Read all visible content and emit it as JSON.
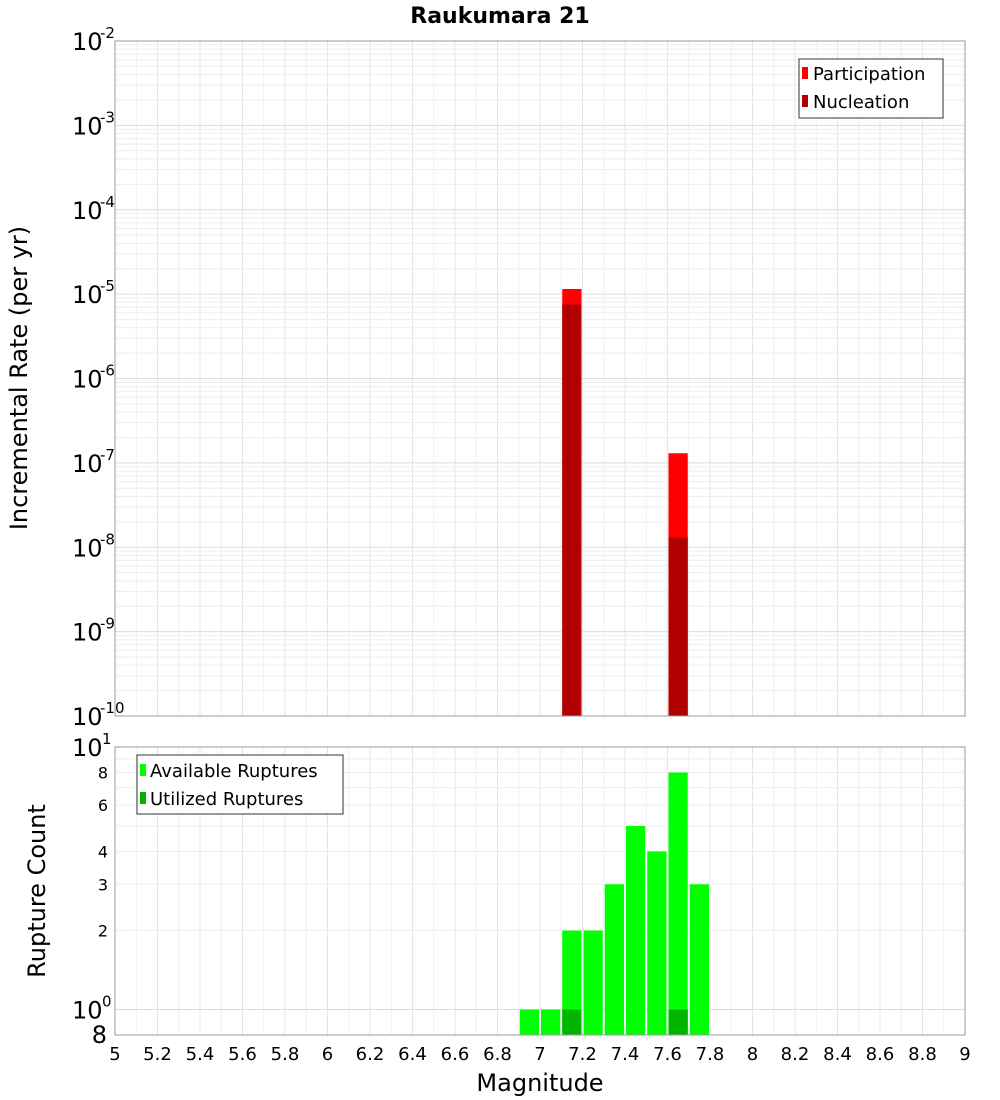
{
  "title": "Raukumara 21",
  "chart_data": [
    {
      "type": "bar",
      "title": "Raukumara 21",
      "xlabel": "",
      "ylabel": "Incremental Rate (per yr)",
      "yscale": "log",
      "ylim": [
        1e-10,
        0.01
      ],
      "xlim": [
        5,
        9
      ],
      "grid": true,
      "legend_position": "top-right",
      "y_ticks": [
        {
          "base": "10",
          "exp": "-2"
        },
        {
          "base": "10",
          "exp": "-3"
        },
        {
          "base": "10",
          "exp": "-4"
        },
        {
          "base": "10",
          "exp": "-5"
        },
        {
          "base": "10",
          "exp": "-6"
        },
        {
          "base": "10",
          "exp": "-7"
        },
        {
          "base": "10",
          "exp": "-8"
        },
        {
          "base": "10",
          "exp": "-9"
        },
        {
          "base": "10",
          "exp": "-10"
        }
      ],
      "series": [
        {
          "name": "Participation",
          "color": "#ff0000",
          "x": [
            7.15,
            7.65
          ],
          "values": [
            1.15e-05,
            1.3e-07
          ]
        },
        {
          "name": "Nucleation",
          "color": "#b00000",
          "x": [
            7.15,
            7.65
          ],
          "values": [
            7.5e-06,
            1.3e-08
          ]
        }
      ]
    },
    {
      "type": "bar",
      "xlabel": "Magnitude",
      "ylabel": "Rupture Count",
      "yscale": "log",
      "ylim": [
        0.8,
        10
      ],
      "xlim": [
        5,
        9
      ],
      "grid": true,
      "legend_position": "top-left",
      "x_ticks": [
        "5",
        "5.2",
        "5.4",
        "5.6",
        "5.8",
        "6",
        "6.2",
        "6.4",
        "6.6",
        "6.8",
        "7",
        "7.2",
        "7.4",
        "7.6",
        "7.8",
        "8",
        "8.2",
        "8.4",
        "8.6",
        "8.8",
        "9"
      ],
      "y_ticks_small": [
        "8",
        "6",
        "4",
        "3",
        "2"
      ],
      "y_ticks_major": [
        {
          "base": "10",
          "exp": "1"
        },
        {
          "base": "10",
          "exp": "0"
        }
      ],
      "y_bottom_label": "8",
      "series": [
        {
          "name": "Available Ruptures",
          "color": "#00ff00",
          "x": [
            6.95,
            7.05,
            7.15,
            7.25,
            7.35,
            7.45,
            7.55,
            7.65,
            7.75
          ],
          "values": [
            1,
            1,
            2,
            2,
            3,
            5,
            4,
            8,
            3
          ]
        },
        {
          "name": "Utilized Ruptures",
          "color": "#00b400",
          "x": [
            7.15,
            7.65
          ],
          "values": [
            1,
            1
          ]
        }
      ]
    }
  ]
}
